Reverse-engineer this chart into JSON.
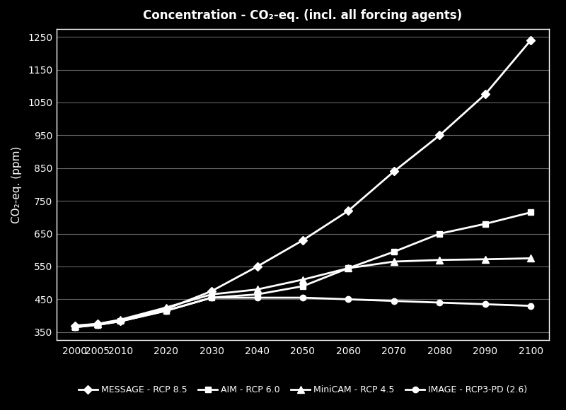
{
  "title": "Concentration - CO₂-eq. (incl. all forcing agents)",
  "ylabel": "CO₂-eq. (ppm)",
  "background_color": "#000000",
  "text_color": "#ffffff",
  "grid_color": "#666666",
  "x_ticks": [
    2000,
    2005,
    2010,
    2020,
    2030,
    2040,
    2050,
    2060,
    2070,
    2080,
    2090,
    2100
  ],
  "y_ticks": [
    350,
    450,
    550,
    650,
    750,
    850,
    950,
    1050,
    1150,
    1250
  ],
  "ylim": [
    325,
    1275
  ],
  "xlim": [
    1996,
    2104
  ],
  "series": [
    {
      "label": "MESSAGE - RCP 8.5",
      "color": "#ffffff",
      "marker": "D",
      "markersize": 6,
      "linewidth": 2,
      "x": [
        2000,
        2005,
        2010,
        2020,
        2030,
        2040,
        2050,
        2060,
        2070,
        2080,
        2090,
        2100
      ],
      "y": [
        370,
        375,
        385,
        420,
        475,
        550,
        630,
        720,
        840,
        950,
        1075,
        1240
      ]
    },
    {
      "label": "AIM - RCP 6.0",
      "color": "#ffffff",
      "marker": "s",
      "markersize": 6,
      "linewidth": 2,
      "x": [
        2000,
        2005,
        2010,
        2020,
        2030,
        2040,
        2050,
        2060,
        2070,
        2080,
        2090,
        2100
      ],
      "y": [
        365,
        372,
        383,
        415,
        455,
        465,
        490,
        545,
        595,
        650,
        680,
        715
      ]
    },
    {
      "label": "MiniCAM - RCP 4.5",
      "color": "#ffffff",
      "marker": "^",
      "markersize": 7,
      "linewidth": 2,
      "x": [
        2000,
        2005,
        2010,
        2020,
        2030,
        2040,
        2050,
        2060,
        2070,
        2080,
        2090,
        2100
      ],
      "y": [
        368,
        375,
        388,
        425,
        465,
        480,
        510,
        545,
        565,
        570,
        572,
        575
      ]
    },
    {
      "label": "IMAGE - RCP3-PD (2.6)",
      "color": "#ffffff",
      "marker": "o",
      "markersize": 6,
      "linewidth": 2,
      "x": [
        2000,
        2005,
        2010,
        2020,
        2030,
        2040,
        2050,
        2060,
        2070,
        2080,
        2090,
        2100
      ],
      "y": [
        365,
        372,
        383,
        415,
        455,
        455,
        455,
        450,
        445,
        440,
        435,
        430
      ]
    }
  ],
  "legend_labels": [
    "←MESSAGE - RCP 8.5",
    "AIM - RCP 6.0",
    "MiniCAM - RCP 4.5",
    "IMAGE - RCP3-PD (2.6)"
  ]
}
